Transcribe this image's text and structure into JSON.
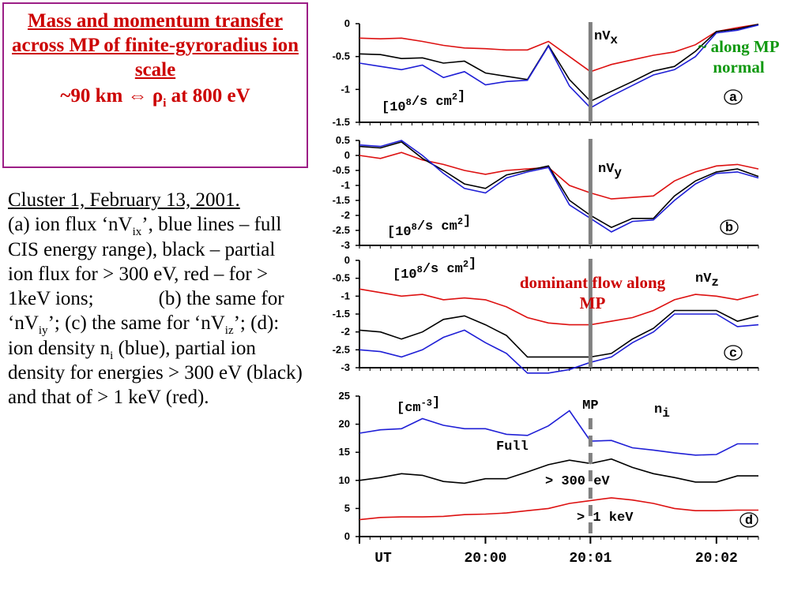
{
  "title": {
    "line1": "Mass and momentum transfer across MP of finite-gyroradius ion scale",
    "line2_prefix": "~90 km ",
    "arrow": "⇔",
    "rho": "ρ",
    "rho_sub": "i",
    "line2_suffix": " at 800 eV"
  },
  "caption": {
    "head": "Cluster 1, February 13, 2001.",
    "p1": "(a) ion flux ‘nV",
    "p1_sub": "ix",
    "p2": "’, blue lines – full CIS energy range), black –  partial ion flux for > 300 eV, red – for > 1keV ions;",
    "p3": "(b) the same for ‘nV",
    "p3_sub": "iy",
    "p4": "’;  (c) the same for ‘nV",
    "p4_sub": "iz",
    "p5": "’;  (d): ion density n",
    "p5_sub": "i",
    "p6": " (blue), partial ion density for energies > 300 eV (black) and that of > 1 keV (red)."
  },
  "annotations": {
    "along_mp_normal": "~ along MP normal",
    "dominant_flow": "dominant flow along MP"
  },
  "colors": {
    "full": "#1f1fd6",
    "gt300": "#000000",
    "gt1kev": "#dd1111",
    "mp_line": "#808080"
  },
  "chart_data": [
    {
      "type": "line",
      "panel": "a",
      "label_main": "nV",
      "label_sub": "x",
      "unit_base": "[10",
      "unit_exp": "8",
      "unit_rest": "/s cm",
      "unit_exp2": "2",
      "unit_close": "]",
      "ylim": [
        -1.5,
        0
      ],
      "yticks": [
        0,
        -0.5,
        -1,
        -1.5
      ],
      "ytick_labels": [
        "0",
        "-0.5",
        "-1",
        "-1.5"
      ],
      "x": [
        0,
        0.5,
        1,
        1.5,
        2,
        2.5,
        3,
        3.5,
        4,
        4.5,
        5,
        5.5,
        6,
        6.5,
        7,
        7.5,
        8,
        8.5,
        9,
        9.5
      ],
      "series": [
        {
          "key": "gt1kev",
          "values": [
            -0.22,
            -0.23,
            -0.22,
            -0.27,
            -0.33,
            -0.37,
            -0.38,
            -0.4,
            -0.4,
            -0.27,
            -0.5,
            -0.73,
            -0.62,
            -0.55,
            -0.48,
            -0.43,
            -0.32,
            -0.12,
            -0.06,
            -0.01
          ]
        },
        {
          "key": "gt300",
          "values": [
            -0.46,
            -0.47,
            -0.53,
            -0.52,
            -0.6,
            -0.57,
            -0.75,
            -0.8,
            -0.85,
            -0.33,
            -0.85,
            -1.18,
            -1.03,
            -0.88,
            -0.72,
            -0.65,
            -0.42,
            -0.12,
            -0.08,
            -0.01
          ]
        },
        {
          "key": "full",
          "values": [
            -0.6,
            -0.65,
            -0.7,
            -0.63,
            -0.82,
            -0.73,
            -0.93,
            -0.88,
            -0.86,
            -0.34,
            -0.95,
            -1.28,
            -1.1,
            -0.94,
            -0.78,
            -0.7,
            -0.5,
            -0.14,
            -0.1,
            -0.02
          ]
        }
      ],
      "mp": 5.5,
      "mp_style": "solid",
      "panel_letter": "a"
    },
    {
      "type": "line",
      "panel": "b",
      "label_main": "nV",
      "label_sub": "y",
      "unit_base": "[10",
      "unit_exp": "8",
      "unit_rest": "/s cm",
      "unit_exp2": "2",
      "unit_close": "]",
      "ylim": [
        -3,
        0.5
      ],
      "yticks": [
        0.5,
        0,
        -0.5,
        -1,
        -1.5,
        -2,
        -2.5,
        -3
      ],
      "ytick_labels": [
        "0.5",
        "0",
        "-0.5",
        "-1",
        "-1.5",
        "-2",
        "-2.5",
        "-3"
      ],
      "x": [
        0,
        0.5,
        1,
        1.5,
        2,
        2.5,
        3,
        3.5,
        4,
        4.5,
        5,
        5.5,
        6,
        6.5,
        7,
        7.5,
        8,
        8.5,
        9,
        9.5
      ],
      "series": [
        {
          "key": "gt1kev",
          "values": [
            0.0,
            -0.1,
            0.1,
            -0.15,
            -0.3,
            -0.5,
            -0.63,
            -0.5,
            -0.45,
            -0.4,
            -1.0,
            -1.25,
            -1.45,
            -1.4,
            -1.35,
            -0.85,
            -0.55,
            -0.35,
            -0.3,
            -0.45
          ]
        },
        {
          "key": "gt300",
          "values": [
            0.3,
            0.25,
            0.45,
            -0.1,
            -0.5,
            -0.95,
            -1.1,
            -0.65,
            -0.5,
            -0.35,
            -1.5,
            -2.0,
            -2.4,
            -2.1,
            -2.1,
            -1.35,
            -0.85,
            -0.55,
            -0.45,
            -0.7
          ]
        },
        {
          "key": "full",
          "values": [
            0.35,
            0.3,
            0.5,
            0.0,
            -0.6,
            -1.1,
            -1.25,
            -0.75,
            -0.55,
            -0.4,
            -1.65,
            -2.1,
            -2.55,
            -2.2,
            -2.15,
            -1.5,
            -0.95,
            -0.6,
            -0.55,
            -0.75
          ]
        }
      ],
      "mp": 5.5,
      "mp_style": "solid",
      "panel_letter": "b"
    },
    {
      "type": "line",
      "panel": "c",
      "label_main": "nV",
      "label_sub": "z",
      "unit_base": "[10",
      "unit_exp": "8",
      "unit_rest": "/s cm",
      "unit_exp2": "2",
      "unit_close": "]",
      "ylim": [
        -3,
        0
      ],
      "yticks": [
        0,
        -0.5,
        -1,
        -1.5,
        -2,
        -2.5,
        -3
      ],
      "ytick_labels": [
        "0",
        "-0.5",
        "-1",
        "-1.5",
        "-2",
        "-2.5",
        "-3"
      ],
      "x": [
        0,
        0.5,
        1,
        1.5,
        2,
        2.5,
        3,
        3.5,
        4,
        4.5,
        5,
        5.5,
        6,
        6.5,
        7,
        7.5,
        8,
        8.5,
        9,
        9.5
      ],
      "series": [
        {
          "key": "gt1kev",
          "values": [
            -0.8,
            -0.9,
            -1.0,
            -0.95,
            -1.1,
            -1.05,
            -1.1,
            -1.3,
            -1.6,
            -1.75,
            -1.8,
            -1.8,
            -1.7,
            -1.6,
            -1.4,
            -1.1,
            -0.95,
            -1.0,
            -1.1,
            -0.95
          ]
        },
        {
          "key": "gt300",
          "values": [
            -1.95,
            -2.0,
            -2.2,
            -2.0,
            -1.65,
            -1.55,
            -1.8,
            -2.1,
            -2.7,
            -2.7,
            -2.7,
            -2.7,
            -2.6,
            -2.2,
            -1.9,
            -1.4,
            -1.4,
            -1.4,
            -1.7,
            -1.55
          ]
        },
        {
          "key": "full",
          "values": [
            -2.5,
            -2.55,
            -2.7,
            -2.5,
            -2.15,
            -1.95,
            -2.3,
            -2.6,
            -3.15,
            -3.15,
            -3.05,
            -2.85,
            -2.7,
            -2.3,
            -2.0,
            -1.5,
            -1.5,
            -1.5,
            -1.85,
            -1.8
          ]
        }
      ],
      "mp": 5.5,
      "mp_style": "solid",
      "panel_letter": "c"
    },
    {
      "type": "line",
      "panel": "d",
      "label_main": "n",
      "label_sub": "i",
      "unit_base": "[cm",
      "unit_exp": "-3",
      "unit_rest": "",
      "unit_exp2": "",
      "unit_close": "]",
      "ylim": [
        0,
        25
      ],
      "yticks": [
        25,
        20,
        15,
        10,
        5,
        0
      ],
      "ytick_labels": [
        "25",
        "20",
        "15",
        "10",
        "5",
        "0"
      ],
      "x": [
        0,
        0.5,
        1,
        1.5,
        2,
        2.5,
        3,
        3.5,
        4,
        4.5,
        5,
        5.5,
        6,
        6.5,
        7,
        7.5,
        8,
        8.5,
        9,
        9.5
      ],
      "series": [
        {
          "key": "full",
          "values": [
            18.4,
            19.0,
            19.2,
            21.0,
            19.8,
            19.2,
            19.2,
            18.2,
            18.0,
            19.7,
            22.4,
            17.0,
            17.1,
            15.8,
            15.4,
            14.9,
            14.5,
            14.6,
            16.5,
            16.5
          ]
        },
        {
          "key": "gt300",
          "values": [
            10.0,
            10.5,
            11.2,
            10.9,
            9.8,
            9.5,
            10.3,
            10.3,
            11.5,
            12.8,
            13.6,
            13.0,
            13.8,
            12.3,
            11.2,
            10.5,
            9.7,
            9.7,
            10.8,
            10.8
          ]
        },
        {
          "key": "gt1kev",
          "values": [
            3.0,
            3.4,
            3.5,
            3.5,
            3.6,
            3.9,
            4.0,
            4.2,
            4.6,
            5.0,
            5.9,
            6.4,
            6.9,
            6.5,
            5.9,
            5.0,
            4.6,
            4.6,
            4.7,
            4.7
          ]
        }
      ],
      "mp": 5.5,
      "mp_style": "dashed",
      "panel_letter": "d",
      "mp_label": "MP",
      "series_label_full": "Full",
      "series_label_gt300": "> 300 eV",
      "series_label_gt1kev": "> 1 keV",
      "xtick_positions": [
        0,
        3,
        5.5,
        8.5
      ],
      "xtick_labels": [
        "UT",
        "20:00",
        "20:01",
        "20:02"
      ]
    }
  ]
}
